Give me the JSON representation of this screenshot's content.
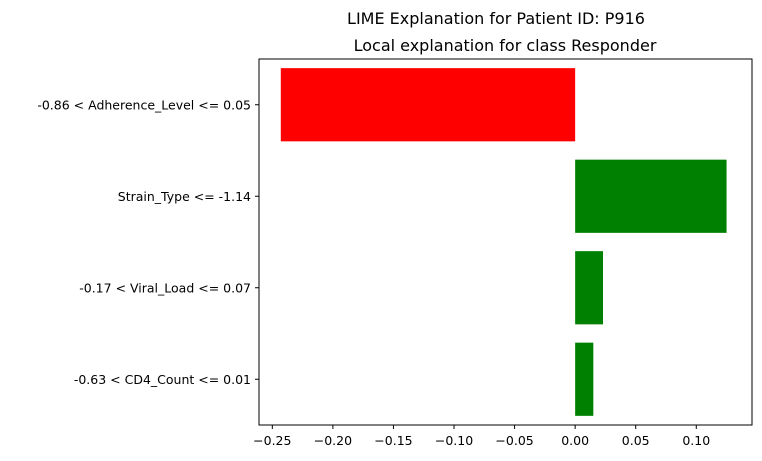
{
  "figure": {
    "suptitle": "LIME Explanation for Patient ID: P916"
  },
  "chart_data": {
    "type": "bar",
    "orientation": "horizontal",
    "title": "Local explanation for class Responder",
    "xlabel": "",
    "ylabel": "",
    "categories": [
      "-0.86 < Adherence_Level <= 0.05",
      "Strain_Type <= -1.14",
      "-0.17 < Viral_Load <= 0.07",
      "-0.63 < CD4_Count <= 0.01"
    ],
    "values": [
      -0.243,
      0.125,
      0.023,
      0.015
    ],
    "xlim": [
      -0.261,
      0.146
    ],
    "xticks": [
      -0.25,
      -0.2,
      -0.15,
      -0.1,
      -0.05,
      0.0,
      0.05,
      0.1
    ],
    "xtick_labels": [
      "−0.25",
      "−0.20",
      "−0.15",
      "−0.10",
      "−0.05",
      "0.00",
      "0.05",
      "0.10"
    ],
    "colors": {
      "positive": "#008000",
      "negative": "#ff0000"
    },
    "grid": false,
    "legend": "none"
  }
}
